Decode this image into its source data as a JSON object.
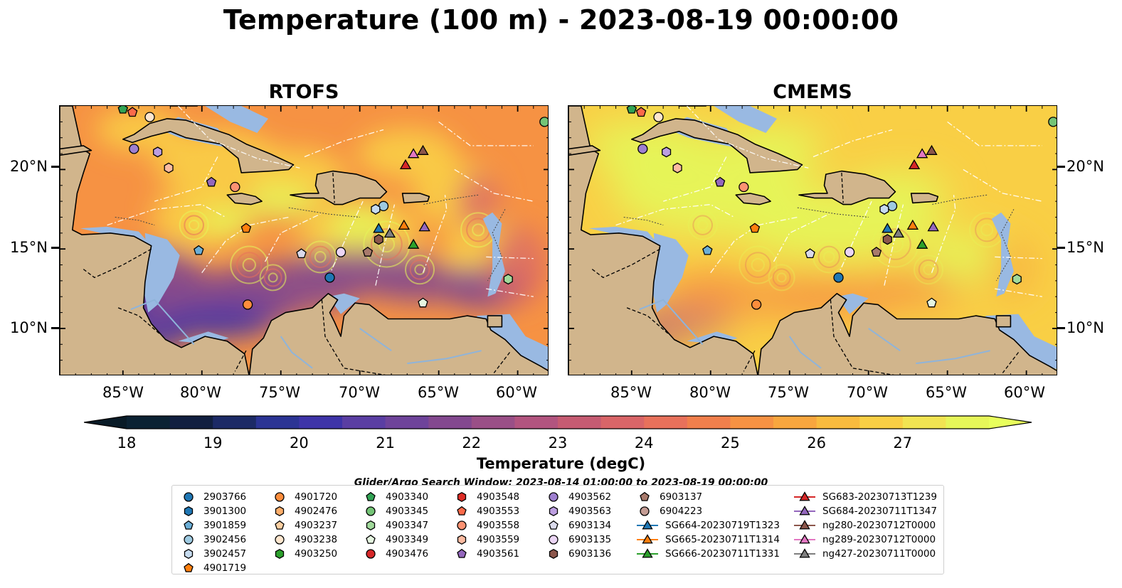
{
  "title": "Temperature (100 m) - 2023-08-19 00:00:00",
  "panels": [
    {
      "title": "RTOFS"
    },
    {
      "title": "CMEMS"
    }
  ],
  "lon_labels": [
    "85°W",
    "80°W",
    "75°W",
    "70°W",
    "65°W",
    "60°W"
  ],
  "lat_labels": [
    "20°N",
    "15°N",
    "10°N"
  ],
  "colorbar": {
    "ticks": [
      "18",
      "19",
      "20",
      "21",
      "22",
      "23",
      "24",
      "25",
      "26",
      "27"
    ],
    "label": "Temperature (degC)",
    "colors": [
      "#0b2233",
      "#111f40",
      "#1c2a66",
      "#2b3494",
      "#3e34a8",
      "#5a3ea3",
      "#6e439a",
      "#83488f",
      "#9a4f87",
      "#b2547f",
      "#c65b72",
      "#d96568",
      "#e8715b",
      "#f17f4c",
      "#f69243",
      "#f8a63e",
      "#f9bb3e",
      "#f9cf45",
      "#f1e452",
      "#e6f659"
    ],
    "extend_low": "#091b27",
    "extend_high": "#e8ff5c"
  },
  "colors": {
    "land": "#d1b58c",
    "shelf": "#99b9e2",
    "deep_cold": "#0d2a3d"
  },
  "search_window": "Glider/Argo Search Window: 2023-08-14 01:00:00 to 2023-08-19 00:00:00",
  "legend": {
    "columns": [
      [
        {
          "label": "2903766",
          "marker": "circle",
          "color": "#1f77b4"
        },
        {
          "label": "3901300",
          "marker": "hexagon",
          "color": "#1f77b4"
        },
        {
          "label": "3901859",
          "marker": "pentagon",
          "color": "#6baed6"
        },
        {
          "label": "3902456",
          "marker": "circle",
          "color": "#9ecae1"
        },
        {
          "label": "3902457",
          "marker": "hexagon",
          "color": "#c6dbef"
        },
        {
          "label": "4901719",
          "marker": "pentagon",
          "color": "#ff7f0e"
        }
      ],
      [
        {
          "label": "4901720",
          "marker": "circle",
          "color": "#fd8d3c"
        },
        {
          "label": "4902476",
          "marker": "hexagon",
          "color": "#fdae6b"
        },
        {
          "label": "4903237",
          "marker": "pentagon",
          "color": "#fdd0a2"
        },
        {
          "label": "4903238",
          "marker": "circle",
          "color": "#fee6ce"
        },
        {
          "label": "4903250",
          "marker": "hexagon",
          "color": "#2ca02c"
        }
      ],
      [
        {
          "label": "4903340",
          "marker": "pentagon",
          "color": "#31a354"
        },
        {
          "label": "4903345",
          "marker": "circle",
          "color": "#74c476"
        },
        {
          "label": "4903347",
          "marker": "hexagon",
          "color": "#a1d99b"
        },
        {
          "label": "4903349",
          "marker": "pentagon",
          "color": "#e5f5e0"
        },
        {
          "label": "4903476",
          "marker": "circle",
          "color": "#d62728"
        }
      ],
      [
        {
          "label": "4903548",
          "marker": "hexagon",
          "color": "#de2d26"
        },
        {
          "label": "4903553",
          "marker": "pentagon",
          "color": "#fb6a4a"
        },
        {
          "label": "4903558",
          "marker": "circle",
          "color": "#fc9272"
        },
        {
          "label": "4903559",
          "marker": "hexagon",
          "color": "#fcbba1"
        },
        {
          "label": "4903561",
          "marker": "pentagon",
          "color": "#9467bd"
        }
      ],
      [
        {
          "label": "4903562",
          "marker": "circle",
          "color": "#9e7fcf"
        },
        {
          "label": "4903563",
          "marker": "hexagon",
          "color": "#bc9ee0"
        },
        {
          "label": "6903134",
          "marker": "pentagon",
          "color": "#dadaeb"
        },
        {
          "label": "6903135",
          "marker": "circle",
          "color": "#ebd5f5"
        },
        {
          "label": "6903136",
          "marker": "hexagon",
          "color": "#8c564b"
        }
      ],
      [
        {
          "label": "6903137",
          "marker": "pentagon",
          "color": "#a87a6c"
        },
        {
          "label": "6904223",
          "marker": "circle",
          "color": "#c49c94"
        },
        {
          "label": "SG664-20230719T1323",
          "marker": "triangle-line",
          "color": "#1f77b4"
        },
        {
          "label": "SG665-20230711T1314",
          "marker": "triangle-line",
          "color": "#ff7f0e"
        },
        {
          "label": "SG666-20230711T1331",
          "marker": "triangle-line",
          "color": "#2ca02c"
        }
      ],
      [
        {
          "label": "SG683-20230713T1239",
          "marker": "triangle-line",
          "color": "#d62728"
        },
        {
          "label": "SG684-20230711T1347",
          "marker": "triangle-line",
          "color": "#9467bd"
        },
        {
          "label": "ng280-20230712T0000",
          "marker": "triangle-line",
          "color": "#8c564b"
        },
        {
          "label": "ng289-20230712T0000",
          "marker": "triangle-line",
          "color": "#e377c2"
        },
        {
          "label": "ng427-20230711T0000",
          "marker": "triangle-line",
          "color": "#7f7f7f"
        }
      ]
    ]
  },
  "map_data": {
    "lon_range": [
      -89,
      -58
    ],
    "lat_range": [
      7,
      24
    ],
    "observations": [
      {
        "id": "4903340",
        "lon": -85.0,
        "lat": 23.8
      },
      {
        "id": "4903553",
        "lon": -84.4,
        "lat": 23.6
      },
      {
        "id": "4903238",
        "lon": -83.3,
        "lat": 23.3
      },
      {
        "id": "4903562",
        "lon": -84.3,
        "lat": 21.3
      },
      {
        "id": "4903563",
        "lon": -82.8,
        "lat": 21.1
      },
      {
        "id": "4903559",
        "lon": -82.1,
        "lat": 20.1
      },
      {
        "id": "4903561",
        "lon": -79.4,
        "lat": 19.2
      },
      {
        "id": "4903558",
        "lon": -77.9,
        "lat": 18.9
      },
      {
        "id": "4901719",
        "lon": -77.2,
        "lat": 16.3
      },
      {
        "id": "3901859",
        "lon": -80.2,
        "lat": 14.9
      },
      {
        "id": "6903134",
        "lon": -73.7,
        "lat": 14.7
      },
      {
        "id": "6903135",
        "lon": -71.2,
        "lat": 14.8
      },
      {
        "id": "2903766",
        "lon": -71.9,
        "lat": 13.2
      },
      {
        "id": "4901720",
        "lon": -77.1,
        "lat": 11.5
      },
      {
        "id": "3902456",
        "lon": -68.5,
        "lat": 17.7
      },
      {
        "id": "3902457",
        "lon": -69.0,
        "lat": 17.5
      },
      {
        "id": "6903137",
        "lon": -69.5,
        "lat": 14.8
      },
      {
        "id": "6903136",
        "lon": -68.8,
        "lat": 15.6
      },
      {
        "id": "4903349",
        "lon": -66.0,
        "lat": 11.6
      },
      {
        "id": "4903347",
        "lon": -60.6,
        "lat": 13.1
      },
      {
        "id": "4903345",
        "lon": -58.3,
        "lat": 23.0
      },
      {
        "id": "SG683-20230713T1239",
        "lon": -67.1,
        "lat": 20.3
      },
      {
        "id": "ng289-20230712T0000",
        "lon": -66.6,
        "lat": 21.0
      },
      {
        "id": "ng280-20230712T0000",
        "lon": -66.0,
        "lat": 21.2
      },
      {
        "id": "SG664-20230719T1323",
        "lon": -68.8,
        "lat": 16.3
      },
      {
        "id": "ng427-20230711T0000",
        "lon": -68.1,
        "lat": 16.0
      },
      {
        "id": "SG665-20230711T1314",
        "lon": -67.2,
        "lat": 16.5
      },
      {
        "id": "SG684-20230711T1347",
        "lon": -65.9,
        "lat": 16.4
      },
      {
        "id": "SG666-20230711T1331",
        "lon": -66.6,
        "lat": 15.3
      }
    ]
  }
}
